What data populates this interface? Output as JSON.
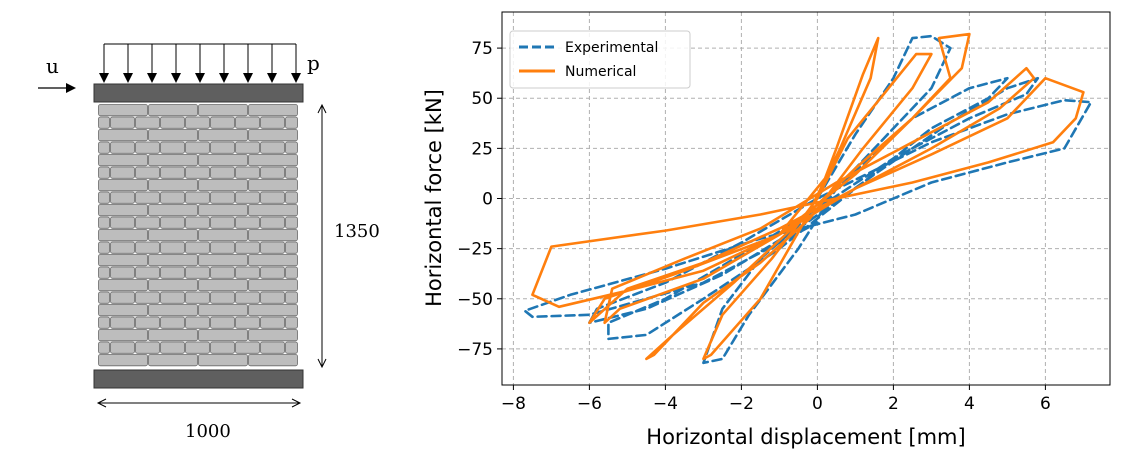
{
  "wall": {
    "load_label_u": "u",
    "load_label_p": "p",
    "height_label": "1350",
    "width_label": "1000"
  },
  "chart_data": {
    "type": "line",
    "xlabel": "Horizontal displacement [mm]",
    "ylabel": "Horizontal force [kN]",
    "xlim": [
      -8.3,
      7.7
    ],
    "ylim": [
      -93,
      93
    ],
    "xticks": [
      -8,
      -6,
      -4,
      -2,
      0,
      2,
      4,
      6
    ],
    "yticks": [
      -75,
      -50,
      -25,
      0,
      25,
      50,
      75
    ],
    "grid": true,
    "legend_position": "top-left",
    "series": [
      {
        "name": "Experimental",
        "style": "dashed",
        "color": "#1f77b4",
        "points": [
          [
            0,
            0
          ],
          [
            1,
            32
          ],
          [
            2,
            60
          ],
          [
            2.5,
            80
          ],
          [
            3,
            81
          ],
          [
            3.5,
            75
          ],
          [
            3,
            55
          ],
          [
            1.5,
            25
          ],
          [
            0,
            -5
          ],
          [
            -1.5,
            -30
          ],
          [
            -2.5,
            -55
          ],
          [
            -3,
            -82
          ],
          [
            -2.5,
            -80
          ],
          [
            -1.8,
            -58
          ],
          [
            -0.5,
            -25
          ],
          [
            0.5,
            5
          ],
          [
            2.5,
            40
          ],
          [
            4,
            55
          ],
          [
            5,
            60
          ],
          [
            4.5,
            50
          ],
          [
            3,
            35
          ],
          [
            1,
            5
          ],
          [
            -1,
            -25
          ],
          [
            -3,
            -50
          ],
          [
            -4.5,
            -68
          ],
          [
            -5.5,
            -70
          ],
          [
            -5.5,
            -62
          ],
          [
            -4,
            -50
          ],
          [
            -2,
            -28
          ],
          [
            0,
            -5
          ],
          [
            2,
            20
          ],
          [
            4,
            40
          ],
          [
            5.5,
            52
          ],
          [
            5.8,
            60
          ],
          [
            5,
            55
          ],
          [
            3.5,
            38
          ],
          [
            1.5,
            12
          ],
          [
            -0.5,
            -15
          ],
          [
            -2.5,
            -38
          ],
          [
            -4.5,
            -55
          ],
          [
            -6,
            -62
          ],
          [
            -5.8,
            -55
          ],
          [
            -4,
            -42
          ],
          [
            -2,
            -22
          ],
          [
            0,
            0
          ],
          [
            3,
            28
          ],
          [
            5,
            42
          ],
          [
            6.5,
            49
          ],
          [
            7.2,
            48
          ],
          [
            6.5,
            25
          ],
          [
            5,
            18
          ],
          [
            3,
            8
          ],
          [
            1,
            -8
          ],
          [
            -1.5,
            -20
          ],
          [
            -4,
            -35
          ],
          [
            -6.5,
            -48
          ],
          [
            -7.7,
            -56
          ],
          [
            -7.5,
            -59
          ],
          [
            -6,
            -58
          ],
          [
            -3,
            -42
          ],
          [
            0,
            -12
          ]
        ]
      },
      {
        "name": "Numerical",
        "style": "solid",
        "color": "#ff7f0e",
        "points": [
          [
            0,
            0
          ],
          [
            0.5,
            25
          ],
          [
            1.2,
            62
          ],
          [
            1.6,
            80
          ],
          [
            1.4,
            60
          ],
          [
            0.6,
            25
          ],
          [
            -0.3,
            -10
          ],
          [
            -1.5,
            -50
          ],
          [
            -2.8,
            -78
          ],
          [
            -3,
            -80
          ],
          [
            -2.5,
            -58
          ],
          [
            -1.2,
            -30
          ],
          [
            0,
            0
          ],
          [
            0.8,
            30
          ],
          [
            2,
            58
          ],
          [
            2.6,
            72
          ],
          [
            3,
            72
          ],
          [
            2.5,
            55
          ],
          [
            1.2,
            25
          ],
          [
            -0.2,
            -10
          ],
          [
            -1.5,
            -32
          ],
          [
            -3,
            -52
          ],
          [
            -4.3,
            -78
          ],
          [
            -4.5,
            -80
          ],
          [
            -3.8,
            -68
          ],
          [
            -2.2,
            -42
          ],
          [
            -0.5,
            -12
          ],
          [
            1,
            15
          ],
          [
            2.5,
            40
          ],
          [
            3.5,
            60
          ],
          [
            3.2,
            80
          ],
          [
            4,
            82
          ],
          [
            3.8,
            65
          ],
          [
            2.5,
            40
          ],
          [
            1,
            12
          ],
          [
            -1,
            -18
          ],
          [
            -3,
            -40
          ],
          [
            -5.2,
            -55
          ],
          [
            -5.6,
            -62
          ],
          [
            -5.4,
            -45
          ],
          [
            -3.5,
            -30
          ],
          [
            -1.5,
            -15
          ],
          [
            0.5,
            8
          ],
          [
            2.5,
            28
          ],
          [
            4.5,
            48
          ],
          [
            5.5,
            65
          ],
          [
            5.7,
            60
          ],
          [
            4.8,
            45
          ],
          [
            3,
            25
          ],
          [
            1,
            5
          ],
          [
            -1,
            -15
          ],
          [
            -3,
            -32
          ],
          [
            -5,
            -45
          ],
          [
            -6,
            -62
          ],
          [
            -5.6,
            -50
          ],
          [
            -3.5,
            -36
          ],
          [
            -1,
            -18
          ],
          [
            1,
            5
          ],
          [
            3,
            22
          ],
          [
            5,
            40
          ],
          [
            6,
            60
          ],
          [
            7,
            53
          ],
          [
            6.8,
            40
          ],
          [
            6.2,
            28
          ],
          [
            4.5,
            18
          ],
          [
            2.5,
            8
          ],
          [
            0.5,
            0
          ],
          [
            -1.5,
            -8
          ],
          [
            -4,
            -16
          ],
          [
            -7,
            -24
          ],
          [
            -7.5,
            -48
          ],
          [
            -6.8,
            -54
          ],
          [
            -5,
            -46
          ],
          [
            -3,
            -36
          ],
          [
            -1,
            -18
          ],
          [
            0.2,
            10
          ]
        ]
      }
    ]
  }
}
